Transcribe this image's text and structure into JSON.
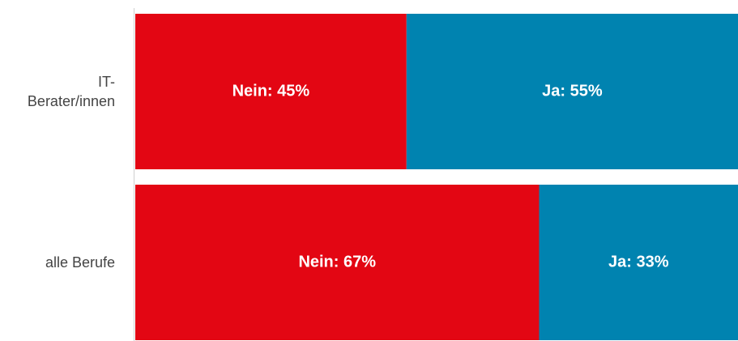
{
  "chart_data": {
    "type": "stacked-barh",
    "categories": [
      "IT-Berater/innen",
      "alle Berufe"
    ],
    "series": [
      {
        "color": "#e30613",
        "values": [
          45,
          67
        ],
        "value_labels": [
          "Nein: 45%",
          "Nein: 67%"
        ]
      },
      {
        "color": "#0083b0",
        "values": [
          55,
          33
        ],
        "value_labels": [
          "Ja: 55%",
          "Ja: 33%"
        ]
      }
    ],
    "xlim": [
      0,
      100
    ]
  }
}
